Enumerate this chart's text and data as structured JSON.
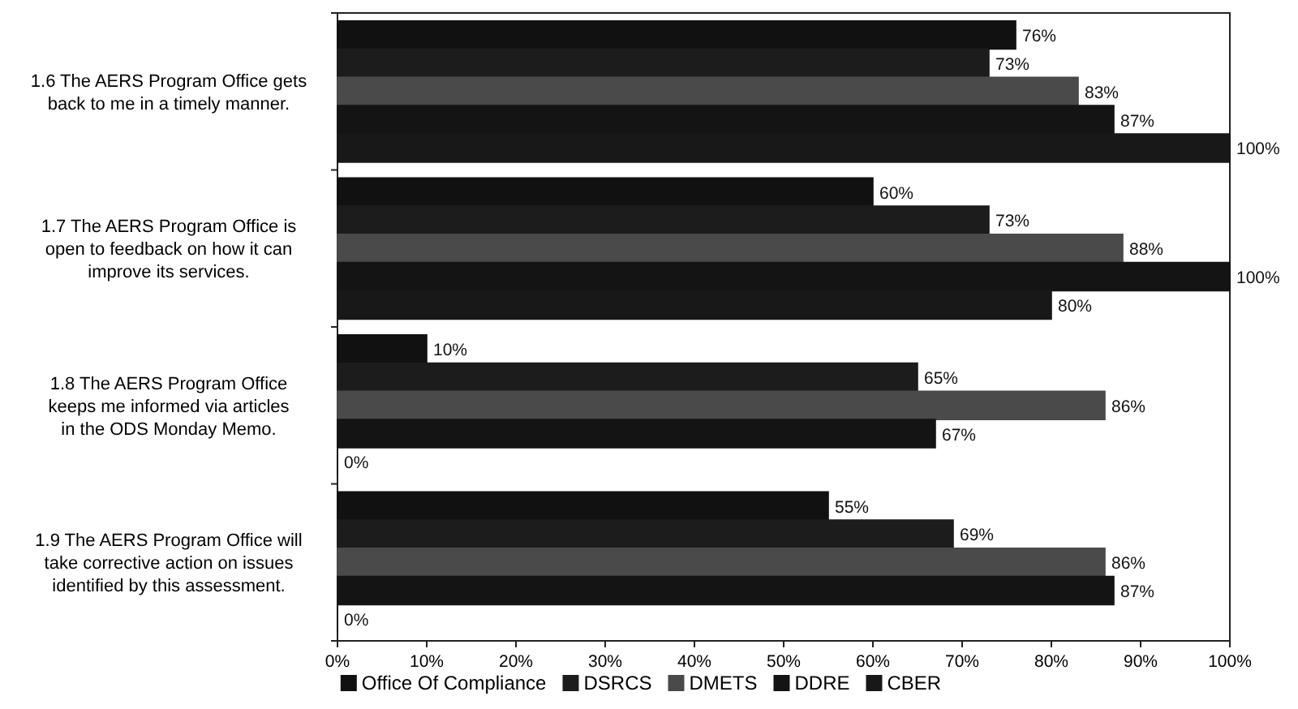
{
  "chart_data": {
    "type": "bar",
    "orientation": "horizontal",
    "categories": [
      "1.6 The AERS Program Office gets back to me in a timely manner.",
      "1.7 The AERS Program Office is open to feedback on how it can improve its services.",
      "1.8 The AERS Program Office keeps me informed via articles in the ODS Monday Memo.",
      "1.9 The AERS Program Office will take corrective action on issues identified by this assessment."
    ],
    "series": [
      {
        "name": "Office Of Compliance",
        "color": "#111111",
        "values": [
          76,
          60,
          10,
          55
        ],
        "value_labels": [
          "76%",
          "60%",
          "10%",
          "55%"
        ]
      },
      {
        "name": "DSRCS",
        "color": "#1c1c1c",
        "values": [
          73,
          73,
          65,
          69
        ],
        "value_labels": [
          "73%",
          "73%",
          "65%",
          "69%"
        ]
      },
      {
        "name": "DMETS",
        "color": "#4a4a4a",
        "values": [
          83,
          88,
          86,
          86
        ],
        "value_labels": [
          "83%",
          "88%",
          "86%",
          "86%"
        ]
      },
      {
        "name": "DDRE",
        "color": "#141414",
        "values": [
          87,
          100,
          67,
          87
        ],
        "value_labels": [
          "87%",
          "100%",
          "67%",
          "87%"
        ]
      },
      {
        "name": "CBER",
        "color": "#181818",
        "values": [
          100,
          80,
          0,
          0
        ],
        "value_labels": [
          "100%",
          "80%",
          "0%",
          "0%"
        ]
      }
    ],
    "xlim": [
      0,
      100
    ],
    "xticks": [
      {
        "value": 0,
        "label": "0%"
      },
      {
        "value": 10,
        "label": "10%"
      },
      {
        "value": 20,
        "label": "20%"
      },
      {
        "value": 30,
        "label": "30%"
      },
      {
        "value": 40,
        "label": "40%"
      },
      {
        "value": 50,
        "label": "50%"
      },
      {
        "value": 60,
        "label": "60%"
      },
      {
        "value": 70,
        "label": "70%"
      },
      {
        "value": 80,
        "label": "80%"
      },
      {
        "value": 90,
        "label": "90%"
      },
      {
        "value": 100,
        "label": "100%"
      }
    ],
    "legend": "bottom",
    "grid": false
  }
}
